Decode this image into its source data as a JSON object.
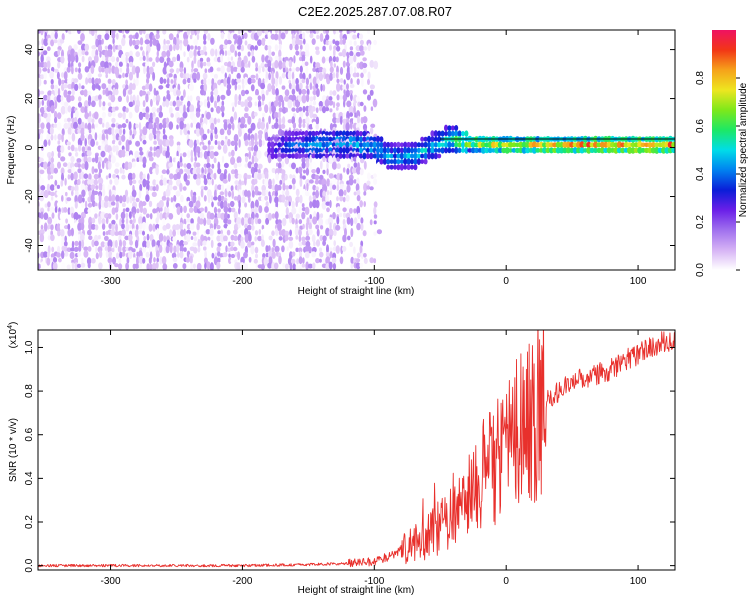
{
  "title": "C2E2.2025.287.07.08.R07",
  "chart_data": [
    {
      "type": "heatmap",
      "title": "C2E2.2025.287.07.08.R07",
      "xlabel": "Height of straight line (km)",
      "ylabel": "Frequency (Hz)",
      "xlim": [
        -355,
        128
      ],
      "ylim": [
        -50,
        48
      ],
      "xticks": [
        -300,
        -200,
        -100,
        0,
        100
      ],
      "yticks": [
        -40,
        -20,
        0,
        20,
        40
      ],
      "colorbar": {
        "label": "Normalized spectral amplitude",
        "range": [
          0.0,
          1.0
        ],
        "ticks": [
          0.0,
          0.2,
          0.4,
          0.6,
          0.8
        ],
        "colors": [
          "#ffffff",
          "#d6b3f5",
          "#a070ee",
          "#6a1fe8",
          "#0a1ed8",
          "#0082f0",
          "#00dde8",
          "#1de865",
          "#7ee81a",
          "#eee620",
          "#f6a21a",
          "#f23616",
          "#ef1262"
        ]
      },
      "features": {
        "noise_region": [
          -355,
          -95
        ],
        "noise_amplitude_range": [
          0.0,
          0.15
        ],
        "signal_ridge": [
          {
            "x": -180,
            "y": 1,
            "amp": 0.3
          },
          {
            "x": -150,
            "y": 2,
            "amp": 0.45
          },
          {
            "x": -120,
            "y": 3,
            "amp": 0.5
          },
          {
            "x": -100,
            "y": 1,
            "amp": 0.5
          },
          {
            "x": -85,
            "y": -3,
            "amp": 0.45
          },
          {
            "x": -70,
            "y": -2,
            "amp": 0.5
          },
          {
            "x": -55,
            "y": 2,
            "amp": 0.5
          },
          {
            "x": -45,
            "y": 4,
            "amp": 0.55
          },
          {
            "x": -25,
            "y": 3,
            "amp": 0.75
          },
          {
            "x": 0,
            "y": 2,
            "amp": 0.8
          },
          {
            "x": 40,
            "y": 2,
            "amp": 0.85
          },
          {
            "x": 80,
            "y": 2,
            "amp": 0.9
          },
          {
            "x": 128,
            "y": 2,
            "amp": 0.9
          }
        ]
      }
    },
    {
      "type": "line",
      "xlabel": "Height of straight line (km)",
      "ylabel": "SNR (10 * v/v)",
      "y_multiplier_label": "(x10",
      "y_multiplier_exponent": "4",
      "xlim": [
        -355,
        128
      ],
      "ylim": [
        -0.02,
        1.08
      ],
      "xticks": [
        -300,
        -200,
        -100,
        0,
        100
      ],
      "yticks": [
        0.0,
        0.2,
        0.4,
        0.6,
        0.8,
        1.0
      ],
      "color": "#e8302c",
      "series": [
        {
          "name": "SNR",
          "x": [
            -355,
            -300,
            -250,
            -200,
            -150,
            -120,
            -100,
            -90,
            -80,
            -70,
            -60,
            -50,
            -40,
            -30,
            -20,
            -10,
            0,
            10,
            20,
            30,
            40,
            50,
            60,
            70,
            80,
            90,
            100,
            110,
            120,
            128
          ],
          "y": [
            0.0,
            0.0,
            0.0,
            0.0,
            0.005,
            0.01,
            0.02,
            0.04,
            0.07,
            0.1,
            0.13,
            0.18,
            0.26,
            0.33,
            0.4,
            0.45,
            0.55,
            0.62,
            0.7,
            0.76,
            0.8,
            0.84,
            0.86,
            0.88,
            0.9,
            0.94,
            0.97,
            1.0,
            1.03,
            1.03
          ]
        }
      ]
    }
  ]
}
